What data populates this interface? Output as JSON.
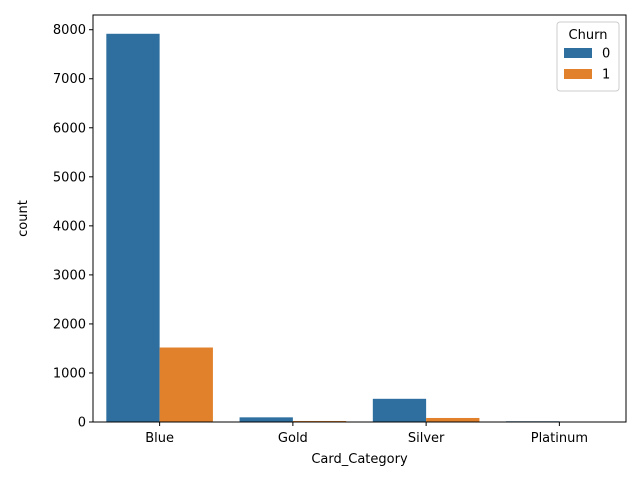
{
  "chart_data": {
    "type": "bar",
    "categories": [
      "Blue",
      "Gold",
      "Silver",
      "Platinum"
    ],
    "series": [
      {
        "name": "0",
        "color": "#2f6f9f",
        "values": [
          7917,
          95,
          473,
          15
        ]
      },
      {
        "name": "1",
        "color": "#e1812c",
        "values": [
          1519,
          21,
          82,
          5
        ]
      }
    ],
    "xlabel": "Card_Category",
    "ylabel": "count",
    "ylim": [
      0,
      8300
    ],
    "yticks": [
      0,
      1000,
      2000,
      3000,
      4000,
      5000,
      6000,
      7000,
      8000
    ],
    "legend": {
      "title": "Churn",
      "placement": "top-right"
    },
    "grid": false
  }
}
